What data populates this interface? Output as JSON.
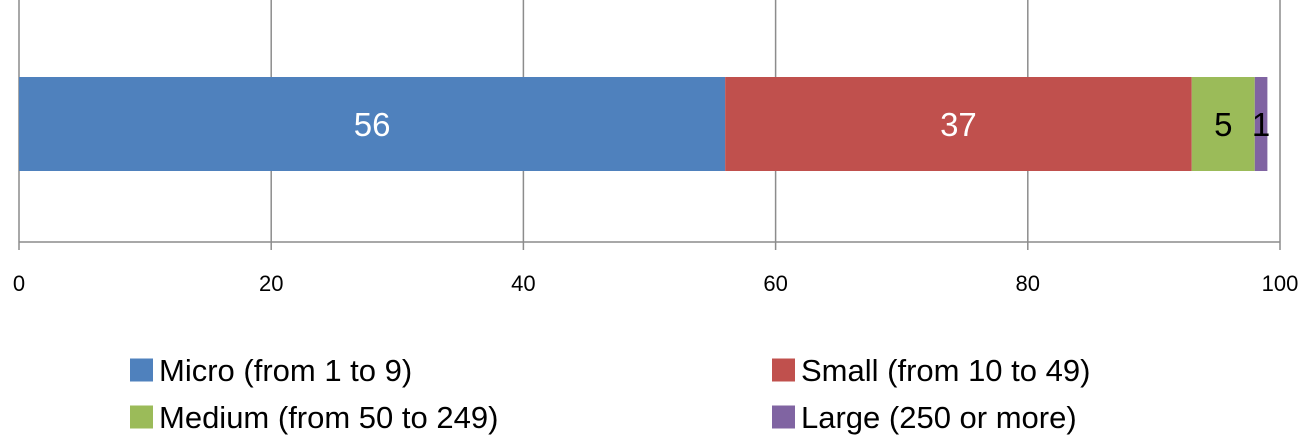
{
  "chart_data": {
    "type": "bar",
    "orientation": "horizontal",
    "stacked": true,
    "title": "",
    "xlabel": "",
    "ylabel": "",
    "categories": [
      ""
    ],
    "xlim": [
      0,
      100
    ],
    "x_ticks": [
      0,
      20,
      40,
      60,
      80,
      100
    ],
    "tick_labels": [
      "0",
      "20",
      "40",
      "60",
      "80",
      "100"
    ],
    "grid": true,
    "legend_position": "bottom",
    "series": [
      {
        "name": "Micro (from 1 to 9)",
        "values": [
          56
        ],
        "color": "#4F81BD",
        "label_color": "#ffffff"
      },
      {
        "name": "Small (from 10 to 49)",
        "values": [
          37
        ],
        "color": "#C0504D",
        "label_color": "#ffffff"
      },
      {
        "name": "Medium (from 50 to 249)",
        "values": [
          5
        ],
        "color": "#9BBB59",
        "label_color": "#000000"
      },
      {
        "name": "Large (250 or more)",
        "values": [
          1
        ],
        "color": "#8064A2",
        "label_color": "#000000"
      }
    ],
    "data_labels": [
      "56",
      "37",
      "5",
      "1"
    ]
  }
}
